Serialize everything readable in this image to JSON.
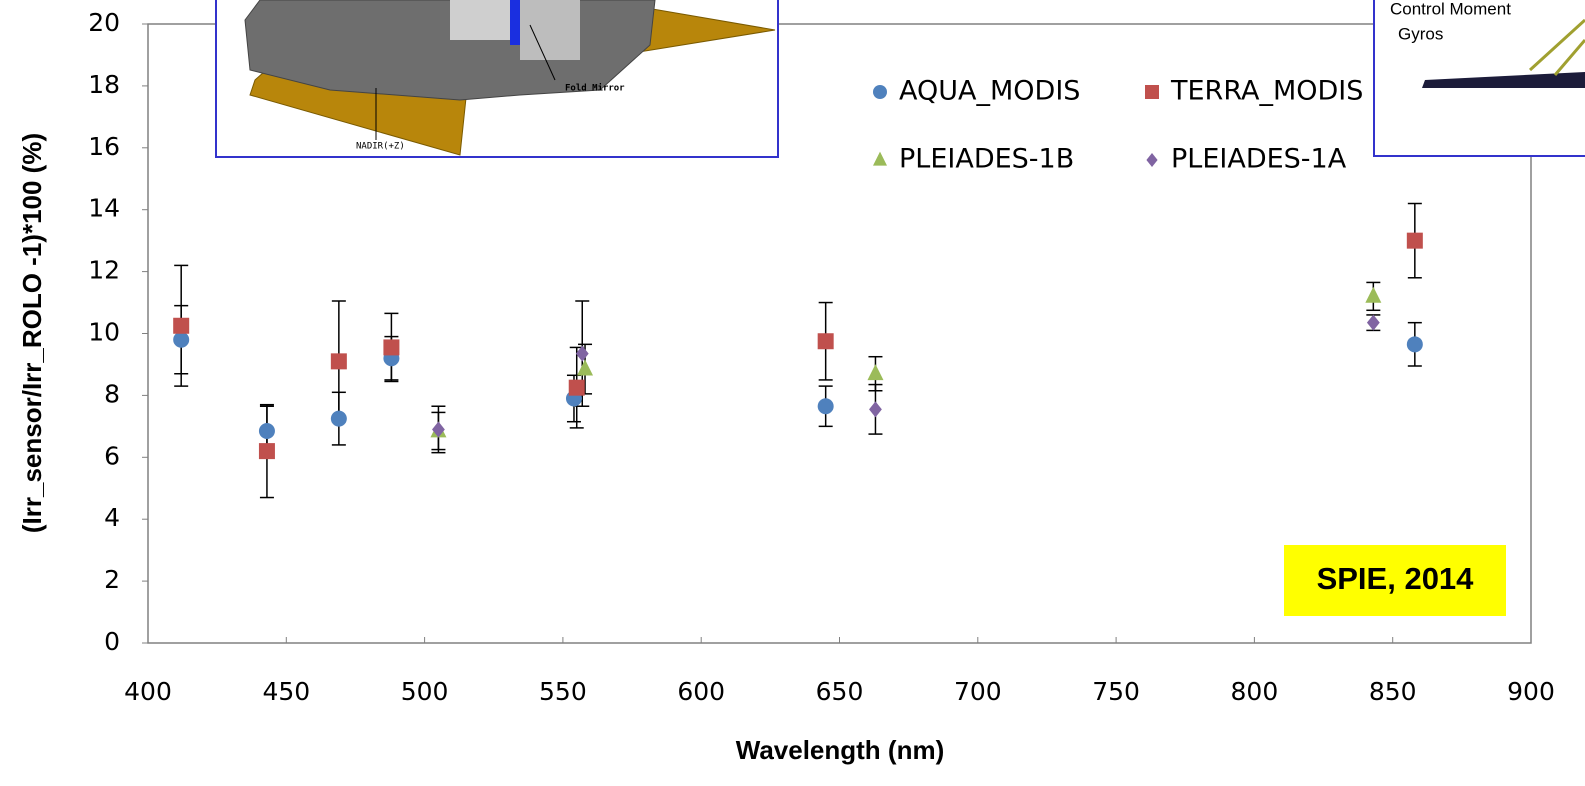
{
  "chart_data": {
    "type": "scatter",
    "x_label": "Wavelength (nm)",
    "y_label": "(Irr_sensor/Irr_ROLO -1)*100 (%)",
    "xlim": [
      400,
      900
    ],
    "xticks": [
      400,
      450,
      500,
      550,
      600,
      650,
      700,
      750,
      800,
      850,
      900
    ],
    "ylim": [
      0,
      20
    ],
    "yticks": [
      0,
      2,
      4,
      6,
      8,
      10,
      12,
      14,
      16,
      18,
      20
    ],
    "annotations": [
      "SPIE, 2014",
      "Fold Mirror",
      "NADIR(+Z)",
      "Control Moment",
      "Gyros"
    ],
    "series": [
      {
        "name": "AQUA_MODIS",
        "color": "#4f81bd",
        "marker": "circle",
        "x": [
          412,
          443,
          469,
          488,
          554,
          645,
          858
        ],
        "values": [
          9.8,
          6.85,
          7.25,
          9.2,
          7.9,
          7.65,
          9.65
        ],
        "errors": [
          1.1,
          0.8,
          0.85,
          0.7,
          0.75,
          0.65,
          0.7
        ]
      },
      {
        "name": "TERRA_MODIS",
        "color": "#c0504d",
        "marker": "square",
        "x": [
          412,
          443,
          469,
          488,
          555,
          645,
          858
        ],
        "values": [
          10.25,
          6.2,
          9.1,
          9.55,
          8.25,
          9.75,
          13.0
        ],
        "errors": [
          1.95,
          1.5,
          1.95,
          1.1,
          1.3,
          1.25,
          1.2
        ]
      },
      {
        "name": "PLEIADES-1B",
        "color": "#9bbb59",
        "marker": "triangle",
        "x": [
          505,
          558,
          663,
          843
        ],
        "values": [
          6.85,
          8.85,
          8.7,
          11.2
        ],
        "errors": [
          0.6,
          0.8,
          0.55,
          0.45
        ]
      },
      {
        "name": "PLEIADES-1A",
        "color": "#8064a2",
        "marker": "diamond",
        "x": [
          505,
          557,
          663,
          843
        ],
        "values": [
          6.9,
          9.35,
          7.55,
          10.35
        ],
        "errors": [
          0.75,
          1.7,
          0.8,
          0.25
        ]
      }
    ]
  }
}
